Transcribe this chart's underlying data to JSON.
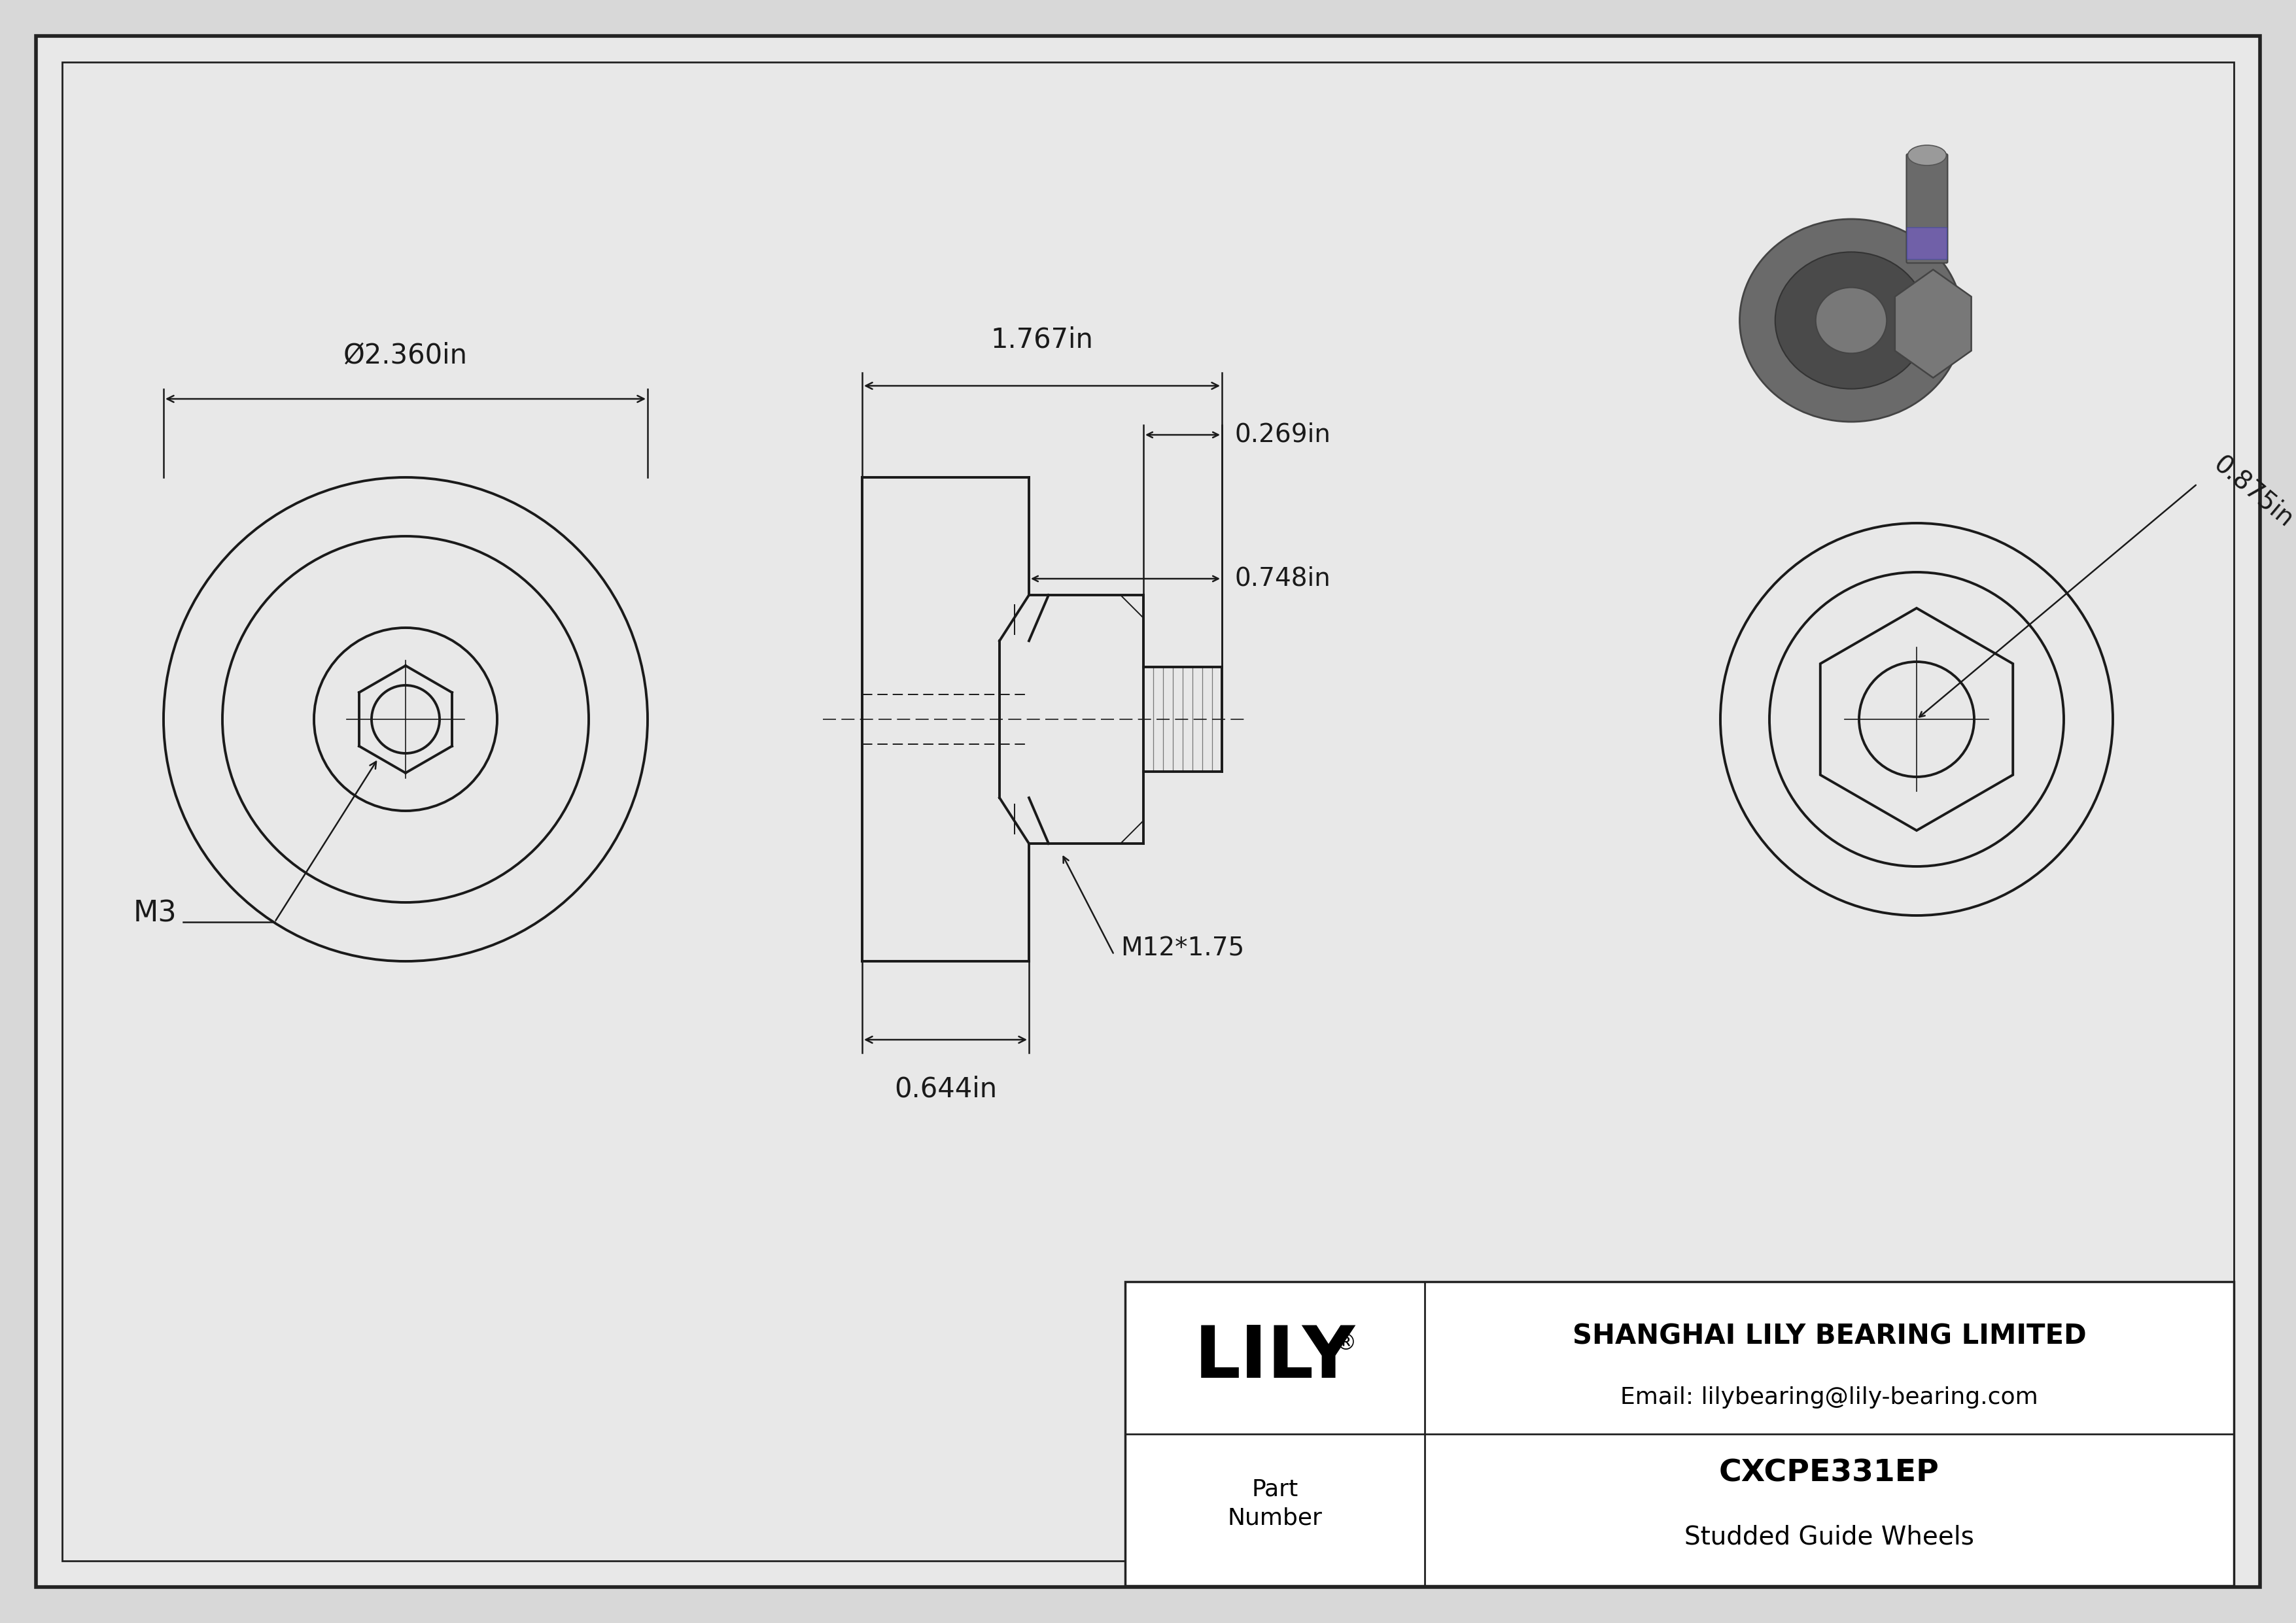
{
  "bg_color": "#d8d8d8",
  "paper_color": "#e8e8e8",
  "line_color": "#1a1a1a",
  "dim_color": "#1a1a1a",
  "part_number": "CXCPE331EP",
  "part_name": "Studded Guide Wheels",
  "company": "SHANGHAI LILY BEARING LIMITED",
  "email": "Email: lilybearing@lily-bearing.com",
  "dims": {
    "diameter": "Ø2.360in",
    "length": "1.767in",
    "stud_dia": "0.269in",
    "hex_width": "0.748in",
    "wheel_width": "0.644in",
    "thread": "M12*1.75",
    "m3": "M3",
    "right_dim": "0.875in"
  }
}
